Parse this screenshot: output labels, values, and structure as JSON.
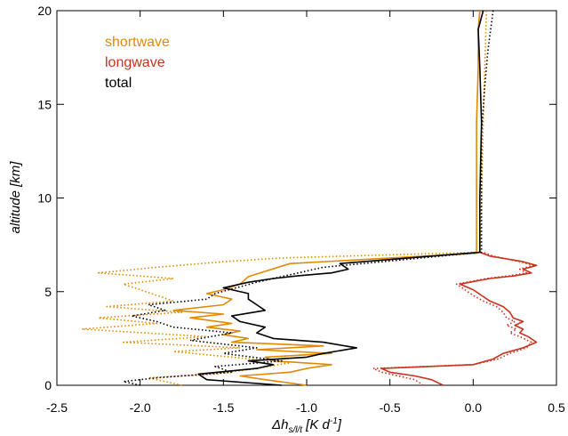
{
  "chart_data": {
    "type": "line",
    "title": "",
    "xlabel_main": "Δh",
    "xlabel_sub": "s/l/t",
    "xlabel_unit_open": " [K d",
    "xlabel_unit_sup": "-1",
    "xlabel_unit_close": "]",
    "ylabel": "altitude [km]",
    "xlim": [
      -2.5,
      0.5
    ],
    "ylim": [
      0,
      20
    ],
    "xticks": [
      -2.5,
      -2.0,
      -1.5,
      -1.0,
      -0.5,
      0.0,
      0.5
    ],
    "xtick_labels": [
      "-2.5",
      "-2.0",
      "-1.5",
      "-1.0",
      "-0.5",
      "0.0",
      "0.5"
    ],
    "yticks": [
      0,
      5,
      10,
      15,
      20
    ],
    "ytick_labels": [
      "0",
      "5",
      "10",
      "15",
      "20"
    ],
    "grid": false,
    "legend_position": "top-left",
    "series": [
      {
        "name": "shortwave",
        "color": "#E08A00",
        "style": "solid",
        "x": [
          -1.0,
          -1.25,
          -1.4,
          -1.1,
          -1.0,
          -0.85,
          -1.2,
          -1.25,
          -0.85,
          -1.3,
          -0.9,
          -1.45,
          -1.35,
          -1.5,
          -1.4,
          -1.6,
          -1.45,
          -1.7,
          -1.5,
          -1.8,
          -1.5,
          -1.45,
          -1.6,
          -1.5,
          -1.4,
          -1.35,
          -1.1,
          0.02,
          0.02,
          0.02,
          0.03,
          0.03,
          0.04
        ],
        "y": [
          0,
          0.3,
          0.5,
          0.7,
          0.9,
          1.1,
          1.3,
          1.5,
          1.7,
          1.9,
          2.1,
          2.3,
          2.5,
          2.7,
          2.9,
          3.1,
          3.3,
          3.6,
          3.8,
          4.0,
          4.3,
          4.6,
          4.9,
          5.1,
          5.4,
          5.8,
          6.5,
          7.05,
          10,
          14,
          17,
          19,
          20
        ]
      },
      {
        "name": "shortwave (dotted)",
        "color": "#E08A00",
        "style": "dotted",
        "x": [
          -1.75,
          -1.95,
          -1.55,
          -1.3,
          -1.1,
          -1.45,
          -1.8,
          -1.4,
          -2.1,
          -1.6,
          -2.35,
          -1.9,
          -2.25,
          -1.75,
          -2.2,
          -1.8,
          -1.9,
          -2.0,
          -2.1,
          -1.8,
          -2.25,
          -1.9,
          -1.5,
          -1.15,
          0.04,
          0.05,
          0.06,
          0.07,
          0.08
        ],
        "y": [
          0,
          0.4,
          0.6,
          0.9,
          1.2,
          1.5,
          1.8,
          2.0,
          2.3,
          2.6,
          3.0,
          3.3,
          3.6,
          3.9,
          4.2,
          4.5,
          4.8,
          5.1,
          5.4,
          5.7,
          6.0,
          6.3,
          6.6,
          6.8,
          7.1,
          10,
          14,
          17,
          20
        ]
      },
      {
        "name": "longwave",
        "color": "#C8321E",
        "style": "solid",
        "x": [
          -0.18,
          -0.25,
          -0.35,
          -0.5,
          -0.55,
          0.0,
          0.12,
          0.18,
          0.3,
          0.38,
          0.33,
          0.28,
          0.3,
          0.25,
          0.3,
          0.24,
          0.22,
          0.18,
          0.1,
          0.05,
          0.0,
          -0.08,
          0.1,
          0.25,
          0.35,
          0.3,
          0.38,
          0.3,
          0.1,
          0.04
        ],
        "y": [
          0,
          0.3,
          0.5,
          0.7,
          0.9,
          1.1,
          1.4,
          1.7,
          2.0,
          2.3,
          2.6,
          2.8,
          3.0,
          3.2,
          3.4,
          3.6,
          3.9,
          4.2,
          4.5,
          4.8,
          5.1,
          5.4,
          5.7,
          5.85,
          6.0,
          6.2,
          6.4,
          6.6,
          6.9,
          7.1
        ]
      },
      {
        "name": "longwave (dotted)",
        "color": "#C8321E",
        "style": "dotted",
        "x": [
          -0.3,
          -0.35,
          -0.45,
          -0.55,
          -0.6,
          0.0,
          0.15,
          0.22,
          0.32,
          0.35,
          0.28,
          0.22,
          0.26,
          0.2,
          0.25,
          0.2,
          0.18,
          0.14,
          0.06,
          0.0,
          -0.05,
          -0.1,
          0.08,
          0.22,
          0.32,
          0.28,
          0.36,
          0.28,
          0.12,
          0.06
        ],
        "y": [
          0,
          0.3,
          0.5,
          0.7,
          0.9,
          1.1,
          1.4,
          1.7,
          2.0,
          2.3,
          2.6,
          2.8,
          3.0,
          3.2,
          3.4,
          3.6,
          3.9,
          4.2,
          4.5,
          4.8,
          5.1,
          5.4,
          5.7,
          5.85,
          6.0,
          6.2,
          6.4,
          6.6,
          6.9,
          7.1
        ]
      },
      {
        "name": "total",
        "color": "#000000",
        "style": "solid",
        "x": [
          -1.15,
          -1.6,
          -1.65,
          -1.3,
          -1.2,
          -1.35,
          -1.0,
          -0.9,
          -0.7,
          -0.9,
          -1.2,
          -1.3,
          -1.25,
          -1.4,
          -1.45,
          -1.25,
          -1.3,
          -1.35,
          -1.35,
          -1.5,
          -1.35,
          -1.2,
          -1.05,
          -0.85,
          -0.75,
          -0.8,
          0.04,
          0.04,
          0.05,
          0.04,
          0.03,
          0.06
        ],
        "y": [
          0,
          0.3,
          0.6,
          0.9,
          1.1,
          1.3,
          1.5,
          1.7,
          2.0,
          2.3,
          2.5,
          2.8,
          3.1,
          3.4,
          3.7,
          4.0,
          4.3,
          4.6,
          4.9,
          5.2,
          5.5,
          5.7,
          5.85,
          6.0,
          6.2,
          6.5,
          7.1,
          10,
          14,
          17,
          19,
          20
        ]
      },
      {
        "name": "total (dotted)",
        "color": "#000000",
        "style": "dotted",
        "x": [
          -2.0,
          -2.1,
          -1.9,
          -1.45,
          -1.55,
          -1.15,
          -1.5,
          -1.3,
          -1.7,
          -1.45,
          -1.8,
          -1.9,
          -2.05,
          -1.85,
          -1.95,
          -1.6,
          -1.55,
          -1.3,
          -0.9,
          0.05,
          0.05,
          0.05,
          0.07,
          0.09,
          0.12
        ],
        "y": [
          0,
          0.2,
          0.4,
          0.7,
          1.0,
          1.3,
          1.7,
          2.0,
          2.4,
          2.8,
          3.1,
          3.4,
          3.7,
          4.0,
          4.3,
          4.6,
          4.9,
          5.5,
          6.3,
          7.1,
          10,
          13.5,
          16,
          18,
          20
        ]
      }
    ],
    "legend": [
      {
        "label": "shortwave",
        "color": "#E08A00"
      },
      {
        "label": "longwave",
        "color": "#C8321E"
      },
      {
        "label": "total",
        "color": "#000000"
      }
    ]
  }
}
